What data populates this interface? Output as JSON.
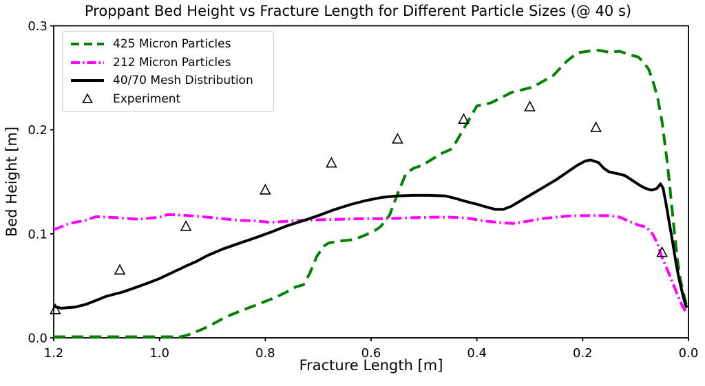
{
  "figure": {
    "background": "#ffffff"
  },
  "chart_data": {
    "type": "line",
    "title": "Proppant Bed Height vs Fracture Length for Different Particle Sizes (@ 40 s)",
    "xlabel": "Fracture Length [m]",
    "ylabel": "Bed Height [m]",
    "xlim": [
      1.2,
      0.0
    ],
    "ylim": [
      0.0,
      0.3
    ],
    "x_axis_inverted": true,
    "grid": false,
    "legend_position": "upper left",
    "axis_color": "#000000",
    "xticks": {
      "values": [
        1.2,
        1.0,
        0.8,
        0.6,
        0.4,
        0.2,
        0.0
      ],
      "labels": [
        "1.2",
        "1.0",
        "0.8",
        "0.6",
        "0.4",
        "0.2",
        "0.0"
      ]
    },
    "yticks": {
      "values": [
        0.0,
        0.1,
        0.2,
        0.3
      ],
      "labels": [
        "0.0",
        "0.1",
        "0.2",
        "0.3"
      ]
    },
    "series": [
      {
        "name": "425 Micron Particles",
        "kind": "line",
        "color": "#008000",
        "line_style": "dashed",
        "line_width": 4,
        "points": [
          [
            1.2,
            0.001
          ],
          [
            1.1,
            0.001
          ],
          [
            1.0,
            0.001
          ],
          [
            0.96,
            0.001
          ],
          [
            0.945,
            0.003
          ],
          [
            0.92,
            0.008
          ],
          [
            0.9,
            0.013
          ],
          [
            0.875,
            0.02
          ],
          [
            0.846,
            0.026
          ],
          [
            0.81,
            0.033
          ],
          [
            0.78,
            0.039
          ],
          [
            0.76,
            0.044
          ],
          [
            0.742,
            0.049
          ],
          [
            0.728,
            0.051
          ],
          [
            0.716,
            0.062
          ],
          [
            0.703,
            0.078
          ],
          [
            0.69,
            0.088
          ],
          [
            0.681,
            0.091
          ],
          [
            0.66,
            0.093
          ],
          [
            0.64,
            0.094
          ],
          [
            0.625,
            0.096
          ],
          [
            0.61,
            0.099
          ],
          [
            0.59,
            0.104
          ],
          [
            0.582,
            0.107
          ],
          [
            0.565,
            0.118
          ],
          [
            0.551,
            0.137
          ],
          [
            0.534,
            0.158
          ],
          [
            0.52,
            0.163
          ],
          [
            0.503,
            0.166
          ],
          [
            0.49,
            0.17
          ],
          [
            0.468,
            0.177
          ],
          [
            0.45,
            0.181
          ],
          [
            0.442,
            0.186
          ],
          [
            0.425,
            0.201
          ],
          [
            0.41,
            0.214
          ],
          [
            0.4,
            0.223
          ],
          [
            0.373,
            0.226
          ],
          [
            0.334,
            0.236
          ],
          [
            0.295,
            0.241
          ],
          [
            0.256,
            0.252
          ],
          [
            0.23,
            0.266
          ],
          [
            0.21,
            0.274
          ],
          [
            0.19,
            0.2755
          ],
          [
            0.17,
            0.2765
          ],
          [
            0.15,
            0.2745
          ],
          [
            0.13,
            0.2755
          ],
          [
            0.11,
            0.272
          ],
          [
            0.095,
            0.27
          ],
          [
            0.085,
            0.265
          ],
          [
            0.075,
            0.258
          ],
          [
            0.065,
            0.243
          ],
          [
            0.058,
            0.23
          ],
          [
            0.05,
            0.208
          ],
          [
            0.045,
            0.188
          ],
          [
            0.04,
            0.168
          ],
          [
            0.035,
            0.144
          ],
          [
            0.03,
            0.118
          ],
          [
            0.025,
            0.094
          ],
          [
            0.02,
            0.072
          ],
          [
            0.015,
            0.055
          ],
          [
            0.01,
            0.044
          ],
          [
            0.006,
            0.036
          ],
          [
            0.003,
            0.029
          ]
        ]
      },
      {
        "name": "212 Micron Particles",
        "kind": "line",
        "color": "#ff00ff",
        "line_style": "dashdot",
        "line_width": 4,
        "points": [
          [
            1.2,
            0.104
          ],
          [
            1.17,
            0.11
          ],
          [
            1.14,
            0.113
          ],
          [
            1.12,
            0.1165
          ],
          [
            1.08,
            0.1155
          ],
          [
            1.04,
            0.114
          ],
          [
            1.0,
            0.116
          ],
          [
            0.985,
            0.1185
          ],
          [
            0.96,
            0.118
          ],
          [
            0.93,
            0.117
          ],
          [
            0.91,
            0.116
          ],
          [
            0.88,
            0.1145
          ],
          [
            0.85,
            0.113
          ],
          [
            0.82,
            0.1125
          ],
          [
            0.79,
            0.111
          ],
          [
            0.76,
            0.112
          ],
          [
            0.73,
            0.113
          ],
          [
            0.7,
            0.1135
          ],
          [
            0.66,
            0.114
          ],
          [
            0.62,
            0.1145
          ],
          [
            0.58,
            0.1145
          ],
          [
            0.55,
            0.115
          ],
          [
            0.52,
            0.1155
          ],
          [
            0.48,
            0.116
          ],
          [
            0.45,
            0.116
          ],
          [
            0.43,
            0.1155
          ],
          [
            0.41,
            0.1145
          ],
          [
            0.39,
            0.1125
          ],
          [
            0.37,
            0.1115
          ],
          [
            0.35,
            0.1105
          ],
          [
            0.33,
            0.11
          ],
          [
            0.31,
            0.1115
          ],
          [
            0.29,
            0.1135
          ],
          [
            0.27,
            0.115
          ],
          [
            0.25,
            0.116
          ],
          [
            0.23,
            0.117
          ],
          [
            0.21,
            0.1175
          ],
          [
            0.19,
            0.1175
          ],
          [
            0.17,
            0.1175
          ],
          [
            0.15,
            0.1175
          ],
          [
            0.13,
            0.116
          ],
          [
            0.11,
            0.1115
          ],
          [
            0.095,
            0.1085
          ],
          [
            0.08,
            0.1065
          ],
          [
            0.068,
            0.1
          ],
          [
            0.058,
            0.09
          ],
          [
            0.051,
            0.0785
          ],
          [
            0.042,
            0.068
          ],
          [
            0.034,
            0.058
          ],
          [
            0.026,
            0.048
          ],
          [
            0.018,
            0.038
          ],
          [
            0.012,
            0.031
          ],
          [
            0.006,
            0.026
          ],
          [
            0.003,
            0.0245
          ]
        ]
      },
      {
        "name": "40/70 Mesh Distribution",
        "kind": "line",
        "color": "#000000",
        "line_style": "solid",
        "line_width": 4,
        "points": [
          [
            1.2,
            0.03
          ],
          [
            1.185,
            0.0285
          ],
          [
            1.16,
            0.0295
          ],
          [
            1.14,
            0.032
          ],
          [
            1.12,
            0.036
          ],
          [
            1.1,
            0.04
          ],
          [
            1.07,
            0.044
          ],
          [
            1.05,
            0.0475
          ],
          [
            1.02,
            0.053
          ],
          [
            1.0,
            0.057
          ],
          [
            0.975,
            0.063
          ],
          [
            0.95,
            0.069
          ],
          [
            0.93,
            0.0735
          ],
          [
            0.91,
            0.079
          ],
          [
            0.88,
            0.0855
          ],
          [
            0.846,
            0.0915
          ],
          [
            0.82,
            0.096
          ],
          [
            0.79,
            0.1015
          ],
          [
            0.76,
            0.1075
          ],
          [
            0.742,
            0.1105
          ],
          [
            0.72,
            0.114
          ],
          [
            0.7,
            0.1175
          ],
          [
            0.668,
            0.1235
          ],
          [
            0.64,
            0.128
          ],
          [
            0.61,
            0.132
          ],
          [
            0.58,
            0.135
          ],
          [
            0.55,
            0.1365
          ],
          [
            0.52,
            0.137
          ],
          [
            0.49,
            0.137
          ],
          [
            0.46,
            0.1365
          ],
          [
            0.44,
            0.134
          ],
          [
            0.42,
            0.131
          ],
          [
            0.4,
            0.1285
          ],
          [
            0.38,
            0.1255
          ],
          [
            0.365,
            0.1235
          ],
          [
            0.35,
            0.1235
          ],
          [
            0.335,
            0.1265
          ],
          [
            0.32,
            0.131
          ],
          [
            0.31,
            0.134
          ],
          [
            0.29,
            0.14
          ],
          [
            0.27,
            0.146
          ],
          [
            0.25,
            0.152
          ],
          [
            0.23,
            0.159
          ],
          [
            0.21,
            0.166
          ],
          [
            0.195,
            0.17
          ],
          [
            0.185,
            0.171
          ],
          [
            0.17,
            0.1685
          ],
          [
            0.16,
            0.163
          ],
          [
            0.15,
            0.1595
          ],
          [
            0.135,
            0.158
          ],
          [
            0.12,
            0.156
          ],
          [
            0.105,
            0.151
          ],
          [
            0.09,
            0.146
          ],
          [
            0.08,
            0.1435
          ],
          [
            0.07,
            0.142
          ],
          [
            0.06,
            0.1435
          ],
          [
            0.053,
            0.148
          ],
          [
            0.048,
            0.144
          ],
          [
            0.042,
            0.128
          ],
          [
            0.036,
            0.11
          ],
          [
            0.03,
            0.092
          ],
          [
            0.024,
            0.073
          ],
          [
            0.018,
            0.057
          ],
          [
            0.012,
            0.044
          ],
          [
            0.006,
            0.032
          ],
          [
            0.003,
            0.029
          ]
        ]
      },
      {
        "name": "Experiment",
        "kind": "scatter",
        "marker": "triangle-open",
        "color": "#000000",
        "points": [
          [
            1.197,
            0.027
          ],
          [
            1.075,
            0.065
          ],
          [
            0.95,
            0.107
          ],
          [
            0.8,
            0.142
          ],
          [
            0.675,
            0.168
          ],
          [
            0.55,
            0.191
          ],
          [
            0.425,
            0.21
          ],
          [
            0.3,
            0.222
          ],
          [
            0.175,
            0.202
          ],
          [
            0.05,
            0.082
          ]
        ]
      }
    ]
  }
}
